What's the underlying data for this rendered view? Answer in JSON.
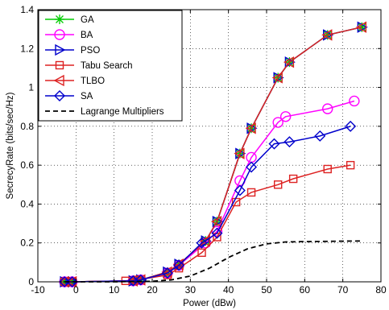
{
  "chart_data": {
    "type": "line",
    "title": "",
    "xlabel": "Power (dBw)",
    "ylabel": "SecrecyRate (bits/sec/Hz)",
    "xlim": [
      -10,
      80
    ],
    "ylim": [
      0,
      1.4
    ],
    "xticks": [
      -10,
      0,
      10,
      20,
      30,
      40,
      50,
      60,
      70,
      80
    ],
    "yticks": [
      0,
      0.2,
      0.4,
      0.6,
      0.8,
      1,
      1.2,
      1.4
    ],
    "xtick_labels": [
      "-10",
      "0",
      "10",
      "20",
      "30",
      "40",
      "50",
      "60",
      "70",
      "80"
    ],
    "ytick_labels": [
      "0",
      "0.2",
      "0.4",
      "0.6",
      "0.8",
      "1",
      "1.2",
      "1.4"
    ],
    "grid": "dotted",
    "legend_position": "top-left",
    "series": [
      {
        "name": "GA",
        "color": "#00cc00",
        "marker": "asterisk",
        "dash": "solid",
        "x": [
          -3,
          -1,
          15,
          17,
          24,
          27,
          34,
          37,
          43,
          46,
          53,
          56,
          66,
          75
        ],
        "y": [
          0.0,
          0.0,
          0.005,
          0.01,
          0.05,
          0.09,
          0.21,
          0.31,
          0.66,
          0.79,
          1.05,
          1.13,
          1.27,
          1.31
        ]
      },
      {
        "name": "BA",
        "color": "#ff00ff",
        "marker": "circle",
        "dash": "solid",
        "x": [
          -3,
          -1,
          15,
          17,
          24,
          27,
          34,
          37,
          43,
          46,
          53,
          55,
          66,
          73
        ],
        "y": [
          0.0,
          0.0,
          0.005,
          0.01,
          0.045,
          0.085,
          0.2,
          0.26,
          0.52,
          0.64,
          0.82,
          0.85,
          0.89,
          0.93
        ]
      },
      {
        "name": "PSO",
        "color": "#0000cc",
        "marker": "triangle-right",
        "dash": "solid",
        "x": [
          -3,
          -1,
          15,
          17,
          24,
          27,
          34,
          37,
          43,
          46,
          53,
          56,
          66,
          75
        ],
        "y": [
          0.0,
          0.0,
          0.005,
          0.01,
          0.05,
          0.09,
          0.21,
          0.31,
          0.66,
          0.79,
          1.05,
          1.13,
          1.27,
          1.31
        ]
      },
      {
        "name": "Tabu Search",
        "color": "#dd2222",
        "marker": "square",
        "dash": "solid",
        "x": [
          -3,
          -1,
          13,
          16,
          24,
          27,
          33,
          37,
          42,
          46,
          53,
          57,
          66,
          72
        ],
        "y": [
          0.0,
          0.0,
          0.005,
          0.01,
          0.035,
          0.07,
          0.15,
          0.23,
          0.41,
          0.46,
          0.5,
          0.53,
          0.58,
          0.6
        ]
      },
      {
        "name": "TLBO",
        "color": "#dd2222",
        "marker": "triangle-left",
        "dash": "solid",
        "x": [
          -3,
          -1,
          15,
          17,
          24,
          27,
          34,
          37,
          43,
          46,
          53,
          56,
          66,
          75
        ],
        "y": [
          0.0,
          0.0,
          0.005,
          0.01,
          0.05,
          0.09,
          0.21,
          0.31,
          0.66,
          0.79,
          1.05,
          1.13,
          1.27,
          1.31
        ]
      },
      {
        "name": "SA",
        "color": "#0000cc",
        "marker": "diamond",
        "dash": "solid",
        "x": [
          -3,
          -1,
          15,
          17,
          24,
          27,
          33,
          37,
          43,
          46,
          52,
          56,
          64,
          72
        ],
        "y": [
          0.0,
          0.0,
          0.005,
          0.01,
          0.045,
          0.085,
          0.2,
          0.25,
          0.47,
          0.59,
          0.71,
          0.72,
          0.75,
          0.8
        ]
      },
      {
        "name": "Lagrange Multipliers",
        "color": "#000000",
        "marker": "none",
        "dash": "dashed",
        "x": [
          -3,
          10,
          20,
          25,
          30,
          35,
          40,
          45,
          50,
          55,
          60,
          65,
          70,
          75
        ],
        "y": [
          0.0,
          0.0,
          0.003,
          0.01,
          0.03,
          0.07,
          0.125,
          0.17,
          0.195,
          0.205,
          0.207,
          0.208,
          0.209,
          0.21
        ]
      }
    ]
  }
}
